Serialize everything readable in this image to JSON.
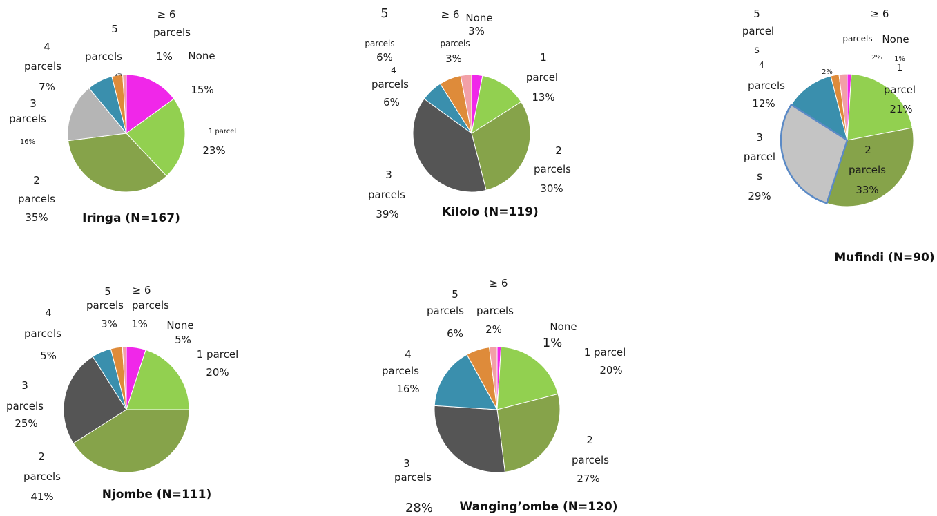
{
  "chart_data": [
    {
      "type": "pie",
      "title": "Iringa (N=167)",
      "categories": [
        "None",
        "1 parcel",
        "2 parcels",
        "3 parcels",
        "4 parcels",
        "5 parcels",
        "≥ 6 parcels"
      ],
      "values": [
        15,
        23,
        35,
        16,
        7,
        3,
        1
      ],
      "colors": [
        "#f027e9",
        "#92d050",
        "#86a34a",
        "#b5b5b5",
        "#3a8fad",
        "#de8b3a",
        "#f2a0a7"
      ],
      "data_labels": [
        [
          "None",
          "15%"
        ],
        [
          "1 parcel",
          "23%"
        ],
        [
          "2",
          "parcels",
          "35%"
        ],
        [
          "3",
          "parcels",
          "16%"
        ],
        [
          "4",
          "parcels",
          "7%"
        ],
        [
          "5",
          "parcels",
          "3%"
        ],
        [
          "≥ 6",
          "parcels",
          "1%"
        ]
      ]
    },
    {
      "type": "pie",
      "title": "Kilolo (N=119)",
      "categories": [
        "None",
        "1 parcel",
        "2 parcels",
        "3 parcels",
        "4 parcels",
        "5 parcels",
        "≥ 6 parcels"
      ],
      "values": [
        3,
        13,
        30,
        39,
        6,
        6,
        3
      ],
      "colors": [
        "#f027e9",
        "#92d050",
        "#86a34a",
        "#555555",
        "#3a8fad",
        "#de8b3a",
        "#f2a0a7"
      ],
      "data_labels": [
        [
          "None",
          "3%"
        ],
        [
          "1",
          "parcel",
          "13%"
        ],
        [
          "2",
          "parcels",
          "30%"
        ],
        [
          "3",
          "parcels",
          "39%"
        ],
        [
          "4",
          "parcels",
          "6%"
        ],
        [
          "5",
          "parcels",
          "6%"
        ],
        [
          "≥ 6",
          "parcels",
          "3%"
        ]
      ]
    },
    {
      "type": "pie",
      "title": "Mufindi (N=90)",
      "categories": [
        "None",
        "1 parcel",
        "2 parcels",
        "3 parcels",
        "4 parcels",
        "5 parcels",
        "≥ 6 parcels"
      ],
      "values": [
        1,
        21,
        33,
        29,
        12,
        2,
        2
      ],
      "colors": [
        "#f027e9",
        "#92d050",
        "#86a34a",
        "#c4c4c4",
        "#3a8fad",
        "#de8b3a",
        "#f2a0a7"
      ],
      "highlight_color": "#5b8ac6",
      "data_labels": [
        [
          "None",
          "1%"
        ],
        [
          "1",
          "parcel",
          "21%"
        ],
        [
          "2",
          "parcels",
          "33%"
        ],
        [
          "3",
          "parcel",
          "s",
          "29%"
        ],
        [
          "4",
          "parcels",
          "12%"
        ],
        [
          "5",
          "parcel",
          "s",
          "2%"
        ],
        [
          "≥ 6",
          "parcels",
          "2%"
        ]
      ]
    },
    {
      "type": "pie",
      "title": "Njombe (N=111)",
      "categories": [
        "None",
        "1 parcel",
        "2 parcels",
        "3 parcels",
        "4 parcels",
        "5 parcels",
        "≥ 6 parcels"
      ],
      "values": [
        5,
        20,
        41,
        25,
        5,
        3,
        1
      ],
      "colors": [
        "#f027e9",
        "#92d050",
        "#86a34a",
        "#555555",
        "#3a8fad",
        "#de8b3a",
        "#f2a0a7"
      ],
      "data_labels": [
        [
          "None",
          "5%"
        ],
        [
          "1 parcel",
          "20%"
        ],
        [
          "2",
          "parcels",
          "41%"
        ],
        [
          "3",
          "parcels",
          "25%"
        ],
        [
          "4",
          "parcels",
          "5%"
        ],
        [
          "5",
          "parcels",
          "3%"
        ],
        [
          "≥ 6",
          "parcels",
          "1%"
        ]
      ]
    },
    {
      "type": "pie",
      "title": "Wanging’ombe (N=120)",
      "categories": [
        "None",
        "1 parcel",
        "2 parcels",
        "3 parcels",
        "4 parcels",
        "5 parcels",
        "≥ 6 parcels"
      ],
      "values": [
        1,
        20,
        27,
        28,
        16,
        6,
        2
      ],
      "colors": [
        "#f027e9",
        "#92d050",
        "#86a34a",
        "#555555",
        "#3a8fad",
        "#de8b3a",
        "#f2a0a7"
      ],
      "data_labels": [
        [
          "None",
          "1%"
        ],
        [
          "1 parcel",
          "20%"
        ],
        [
          "2",
          "parcels",
          "27%"
        ],
        [
          "3",
          "parcels",
          "28%"
        ],
        [
          "4",
          "parcels",
          "16%"
        ],
        [
          "5",
          "parcels",
          "6%"
        ],
        [
          "≥ 6",
          "parcels",
          "2%"
        ]
      ]
    }
  ]
}
